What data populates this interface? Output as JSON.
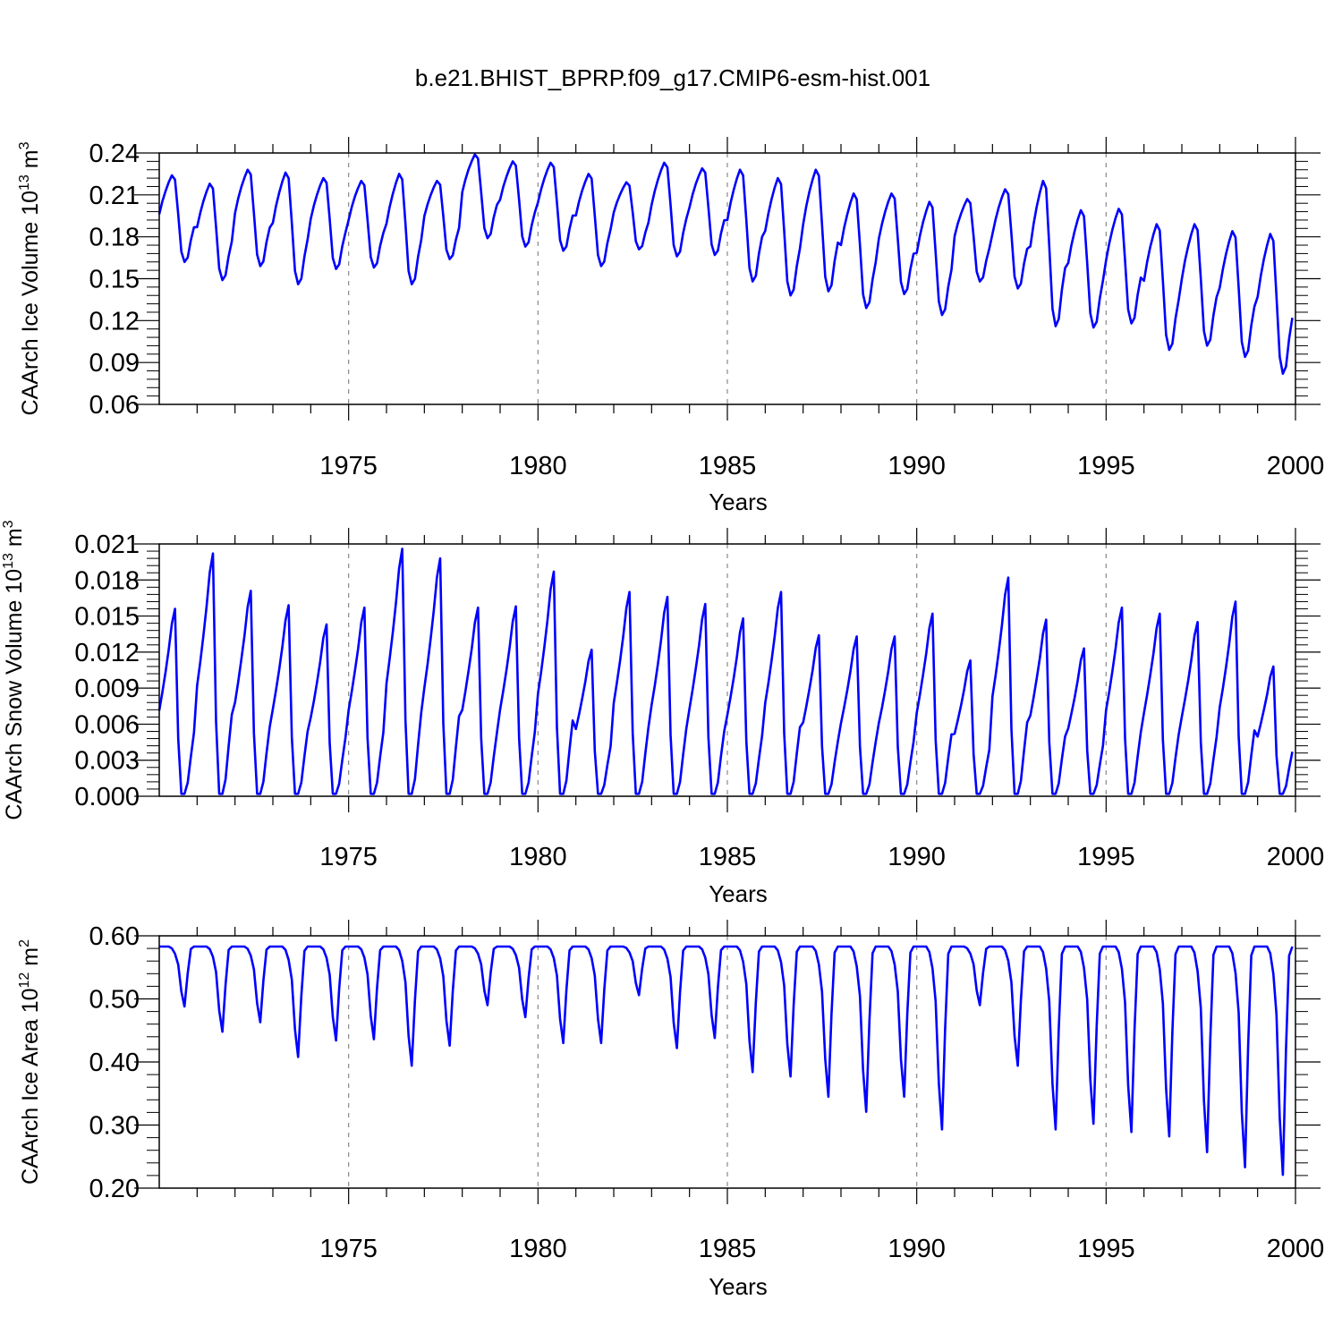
{
  "title": "b.e21.BHIST_BPRP.f09_g17.CMIP6-esm-hist.001",
  "chart_data": [
    {
      "type": "line",
      "xlabel": "Years",
      "ylabel": "CAArch Ice Volume 10",
      "ylabel_exp": "13",
      "ylabel_unit": " m",
      "ylabel_unit_exp": "3",
      "xlim": [
        1970,
        2000
      ],
      "ylim": [
        0.06,
        0.24
      ],
      "xticks": [
        1975,
        1980,
        1985,
        1990,
        1995,
        2000
      ],
      "xtick_labels": [
        "1975",
        "1980",
        "1985",
        "1990",
        "1995",
        "2000"
      ],
      "yticks": [
        0.06,
        0.09,
        0.12,
        0.15,
        0.18,
        0.21,
        0.24
      ],
      "ytick_labels": [
        "0.06",
        "0.09",
        "0.12",
        "0.15",
        "0.18",
        "0.21",
        "0.24"
      ],
      "vlines": [
        1975,
        1980,
        1985,
        1990,
        1995
      ],
      "color": "#0000ff",
      "series_name": "CAArch Ice Volume",
      "monthly_min": [
        0.162,
        0.149,
        0.159,
        0.146,
        0.157,
        0.158,
        0.146,
        0.164,
        0.179,
        0.173,
        0.17,
        0.159,
        0.171,
        0.166,
        0.167,
        0.148,
        0.138,
        0.141,
        0.129,
        0.139,
        0.124,
        0.148,
        0.143,
        0.116,
        0.115,
        0.118,
        0.099,
        0.102,
        0.094,
        0.082
      ],
      "monthly_max": [
        0.224,
        0.218,
        0.228,
        0.226,
        0.222,
        0.22,
        0.225,
        0.22,
        0.239,
        0.234,
        0.233,
        0.225,
        0.219,
        0.233,
        0.229,
        0.228,
        0.222,
        0.228,
        0.211,
        0.211,
        0.205,
        0.207,
        0.214,
        0.22,
        0.199,
        0.2,
        0.189,
        0.189,
        0.184,
        0.182
      ]
    },
    {
      "type": "line",
      "xlabel": "Years",
      "ylabel": "CAArch Snow Volume 10",
      "ylabel_exp": "13",
      "ylabel_unit": " m",
      "ylabel_unit_exp": "3",
      "xlim": [
        1970,
        2000
      ],
      "ylim": [
        0.0,
        0.021
      ],
      "xticks": [
        1975,
        1980,
        1985,
        1990,
        1995,
        2000
      ],
      "xtick_labels": [
        "1975",
        "1980",
        "1985",
        "1990",
        "1995",
        "2000"
      ],
      "yticks": [
        0.0,
        0.003,
        0.006,
        0.009,
        0.012,
        0.015,
        0.018,
        0.021
      ],
      "ytick_labels": [
        "0.000",
        "0.003",
        "0.006",
        "0.009",
        "0.012",
        "0.015",
        "0.018",
        "0.021"
      ],
      "vlines": [
        1975,
        1980,
        1985,
        1990,
        1995
      ],
      "color": "#0000ff",
      "series_name": "CAArch Snow Volume",
      "monthly_min": [
        0.0002,
        0.0002,
        0.0002,
        0.0002,
        0.0002,
        0.0002,
        0.0002,
        0.0002,
        0.0002,
        0.0002,
        0.0002,
        0.0002,
        0.0002,
        0.0002,
        0.0002,
        0.0002,
        0.0002,
        0.0002,
        0.0002,
        0.0002,
        0.0002,
        0.0002,
        0.0002,
        0.0002,
        0.0002,
        0.0002,
        0.0002,
        0.0002,
        0.0002,
        0.0002
      ],
      "monthly_max": [
        0.0156,
        0.0202,
        0.0171,
        0.0159,
        0.0143,
        0.0157,
        0.0206,
        0.0198,
        0.0157,
        0.0158,
        0.0187,
        0.0122,
        0.017,
        0.0166,
        0.016,
        0.0148,
        0.017,
        0.0134,
        0.0133,
        0.0133,
        0.0152,
        0.0113,
        0.0182,
        0.0147,
        0.0123,
        0.0157,
        0.0152,
        0.0145,
        0.0162,
        0.0108
      ]
    },
    {
      "type": "line",
      "xlabel": "Years",
      "ylabel": "CAArch Ice Area 10",
      "ylabel_exp": "12",
      "ylabel_unit": " m",
      "ylabel_unit_exp": "2",
      "xlim": [
        1970,
        2000
      ],
      "ylim": [
        0.2,
        0.6
      ],
      "xticks": [
        1975,
        1980,
        1985,
        1990,
        1995,
        2000
      ],
      "xtick_labels": [
        "1975",
        "1980",
        "1985",
        "1990",
        "1995",
        "2000"
      ],
      "yticks": [
        0.2,
        0.3,
        0.4,
        0.5,
        0.6
      ],
      "ytick_labels": [
        "0.20",
        "0.30",
        "0.40",
        "0.50",
        "0.60"
      ],
      "vlines": [
        1975,
        1980,
        1985,
        1990,
        1995
      ],
      "color": "#0000ff",
      "series_name": "CAArch Ice Area",
      "monthly_max": [
        0.583,
        0.583,
        0.583,
        0.583,
        0.583,
        0.583,
        0.583,
        0.583,
        0.583,
        0.583,
        0.583,
        0.583,
        0.583,
        0.583,
        0.583,
        0.583,
        0.583,
        0.583,
        0.583,
        0.583,
        0.583,
        0.583,
        0.583,
        0.583,
        0.583,
        0.583,
        0.583,
        0.583,
        0.583,
        0.583
      ],
      "monthly_min": [
        0.488,
        0.448,
        0.463,
        0.408,
        0.434,
        0.436,
        0.394,
        0.426,
        0.49,
        0.471,
        0.43,
        0.43,
        0.506,
        0.422,
        0.438,
        0.384,
        0.377,
        0.345,
        0.321,
        0.345,
        0.293,
        0.49,
        0.394,
        0.293,
        0.302,
        0.289,
        0.282,
        0.257,
        0.233,
        0.221
      ]
    }
  ]
}
